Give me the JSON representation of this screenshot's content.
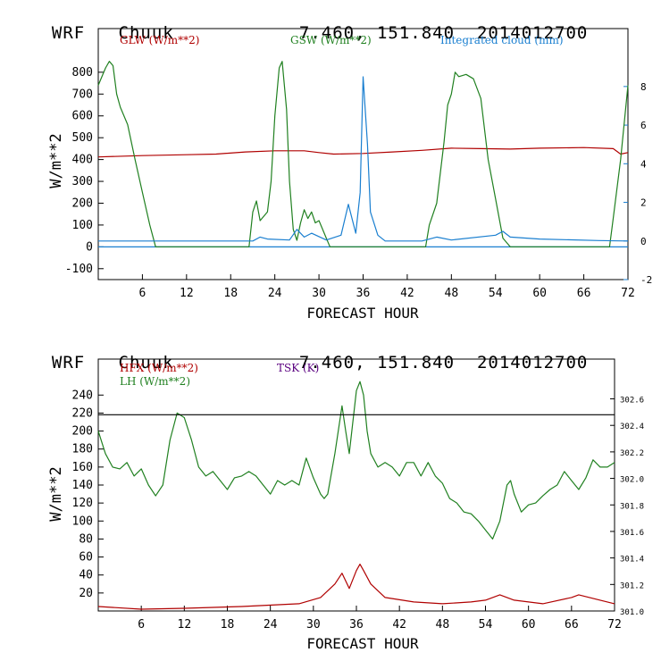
{
  "header": {
    "model": "WRF",
    "location": "Chuuk",
    "coords": "7.460, 151.840",
    "date": "2014012700"
  },
  "colors": {
    "glw": "#b00000",
    "gsw": "#208020",
    "cloud": "#1a7fd0",
    "hfx": "#b00000",
    "lh": "#208020",
    "tsk": "#5a0080"
  },
  "chart_data": [
    {
      "type": "line",
      "title": "WRF Chuuk 7.460, 151.840 2014012700",
      "xlabel": "FORECAST HOUR",
      "ylabel": "W/m**2",
      "xlim": [
        0,
        72
      ],
      "ylim": [
        -150,
        1000
      ],
      "y2lim": [
        -2,
        11
      ],
      "x_ticks": [
        6,
        12,
        18,
        24,
        30,
        36,
        42,
        48,
        54,
        60,
        66,
        72
      ],
      "y_ticks": [
        -100,
        0,
        100,
        200,
        300,
        400,
        500,
        600,
        700,
        800
      ],
      "y2_ticks": [
        -2,
        0,
        2,
        4,
        6,
        8
      ],
      "legend": [
        "GLW (W/m**2)",
        "GSW (W/m**2)",
        "Integrated cloud (mm)"
      ],
      "series": [
        {
          "name": "GLW (W/m**2)",
          "axis": "left",
          "color": "#b00000",
          "points": [
            [
              0,
              412
            ],
            [
              6,
              418
            ],
            [
              12,
              422
            ],
            [
              16,
              425
            ],
            [
              20,
              435
            ],
            [
              24,
              440
            ],
            [
              28,
              440
            ],
            [
              30,
              432
            ],
            [
              32,
              425
            ],
            [
              36,
              428
            ],
            [
              40,
              435
            ],
            [
              44,
              442
            ],
            [
              48,
              452
            ],
            [
              52,
              450
            ],
            [
              56,
              448
            ],
            [
              60,
              452
            ],
            [
              66,
              455
            ],
            [
              70,
              450
            ],
            [
              71,
              425
            ],
            [
              72,
              432
            ]
          ]
        },
        {
          "name": "GSW (W/m**2)",
          "axis": "left",
          "color": "#208020",
          "points": [
            [
              0,
              740
            ],
            [
              1,
              820
            ],
            [
              1.5,
              850
            ],
            [
              2,
              830
            ],
            [
              2.5,
              700
            ],
            [
              3,
              640
            ],
            [
              4,
              560
            ],
            [
              5,
              400
            ],
            [
              6,
              250
            ],
            [
              7,
              100
            ],
            [
              7.8,
              0
            ],
            [
              20.5,
              0
            ],
            [
              21,
              160
            ],
            [
              21.5,
              210
            ],
            [
              22,
              120
            ],
            [
              23,
              160
            ],
            [
              23.5,
              300
            ],
            [
              24,
              600
            ],
            [
              24.6,
              820
            ],
            [
              25,
              850
            ],
            [
              25.6,
              630
            ],
            [
              26,
              300
            ],
            [
              26.5,
              80
            ],
            [
              27,
              30
            ],
            [
              27.5,
              110
            ],
            [
              28,
              170
            ],
            [
              28.5,
              130
            ],
            [
              29,
              160
            ],
            [
              29.5,
              110
            ],
            [
              30,
              120
            ],
            [
              31,
              40
            ],
            [
              31.5,
              0
            ],
            [
              44.5,
              0
            ],
            [
              45,
              100
            ],
            [
              46,
              200
            ],
            [
              47,
              480
            ],
            [
              47.5,
              650
            ],
            [
              48,
              700
            ],
            [
              48.5,
              800
            ],
            [
              49,
              780
            ],
            [
              50,
              790
            ],
            [
              51,
              770
            ],
            [
              52,
              680
            ],
            [
              53,
              400
            ],
            [
              54,
              220
            ],
            [
              55,
              40
            ],
            [
              56,
              0
            ],
            [
              69.5,
              0
            ],
            [
              70,
              130
            ],
            [
              71,
              400
            ],
            [
              72,
              740
            ]
          ]
        },
        {
          "name": "Integrated cloud (mm)",
          "axis": "right",
          "color": "#1a7fd0",
          "points": [
            [
              0,
              0
            ],
            [
              21,
              0
            ],
            [
              22,
              0.2
            ],
            [
              23,
              0.1
            ],
            [
              26,
              0.05
            ],
            [
              27,
              0.6
            ],
            [
              28,
              0.2
            ],
            [
              29,
              0.4
            ],
            [
              31,
              0.05
            ],
            [
              33,
              0.3
            ],
            [
              34,
              1.9
            ],
            [
              35,
              0.4
            ],
            [
              35.6,
              2.5
            ],
            [
              36,
              8.5
            ],
            [
              36.6,
              5
            ],
            [
              37,
              1.5
            ],
            [
              38,
              0.3
            ],
            [
              39,
              0
            ],
            [
              44,
              0
            ],
            [
              46,
              0.2
            ],
            [
              48,
              0.05
            ],
            [
              54,
              0.3
            ],
            [
              55,
              0.5
            ],
            [
              56,
              0.2
            ],
            [
              60,
              0.1
            ],
            [
              68,
              0.02
            ],
            [
              72,
              0
            ]
          ]
        }
      ]
    },
    {
      "type": "line",
      "title": "WRF Chuuk 7.460, 151.840 2014012700",
      "xlabel": "FORECAST HOUR",
      "ylabel": "W/m**2",
      "xlim": [
        0,
        72
      ],
      "ylim": [
        0,
        280
      ],
      "y2lim": [
        301.0,
        302.9
      ],
      "x_ticks": [
        6,
        12,
        18,
        24,
        30,
        36,
        42,
        48,
        54,
        60,
        66,
        72
      ],
      "y_ticks": [
        20,
        40,
        60,
        80,
        100,
        120,
        140,
        160,
        180,
        200,
        220,
        240
      ],
      "y2_ticks": [
        "301.0",
        "301.2",
        "301.4",
        "301.6",
        "301.8",
        "302.0",
        "302.2",
        "302.4",
        "302.6"
      ],
      "legend": [
        "HFX (W/m**2)",
        "LH (W/m**2)",
        "TSK (K)"
      ],
      "series": [
        {
          "name": "HFX (W/m**2)",
          "axis": "left",
          "color": "#b00000",
          "points": [
            [
              0,
              5
            ],
            [
              6,
              2
            ],
            [
              12,
              3
            ],
            [
              20,
              5
            ],
            [
              28,
              8
            ],
            [
              31,
              15
            ],
            [
              33,
              30
            ],
            [
              34,
              42
            ],
            [
              35,
              25
            ],
            [
              36,
              45
            ],
            [
              36.5,
              52
            ],
            [
              37,
              45
            ],
            [
              38,
              30
            ],
            [
              40,
              15
            ],
            [
              44,
              10
            ],
            [
              48,
              8
            ],
            [
              52,
              10
            ],
            [
              54,
              12
            ],
            [
              56,
              18
            ],
            [
              58,
              12
            ],
            [
              62,
              8
            ],
            [
              66,
              15
            ],
            [
              67,
              18
            ],
            [
              70,
              12
            ],
            [
              72,
              8
            ]
          ]
        },
        {
          "name": "LH (W/m**2)",
          "axis": "left",
          "color": "#208020",
          "points": [
            [
              0,
              200
            ],
            [
              1,
              175
            ],
            [
              2,
              160
            ],
            [
              3,
              158
            ],
            [
              4,
              165
            ],
            [
              5,
              150
            ],
            [
              6,
              158
            ],
            [
              7,
              140
            ],
            [
              8,
              128
            ],
            [
              9,
              140
            ],
            [
              10,
              190
            ],
            [
              11,
              220
            ],
            [
              12,
              215
            ],
            [
              13,
              190
            ],
            [
              14,
              160
            ],
            [
              15,
              150
            ],
            [
              16,
              155
            ],
            [
              17,
              145
            ],
            [
              18,
              135
            ],
            [
              19,
              148
            ],
            [
              20,
              150
            ],
            [
              21,
              155
            ],
            [
              22,
              150
            ],
            [
              23,
              140
            ],
            [
              24,
              130
            ],
            [
              25,
              145
            ],
            [
              26,
              140
            ],
            [
              27,
              145
            ],
            [
              28,
              140
            ],
            [
              29,
              170
            ],
            [
              30,
              148
            ],
            [
              31,
              130
            ],
            [
              31.5,
              125
            ],
            [
              32,
              130
            ],
            [
              33,
              175
            ],
            [
              34,
              228
            ],
            [
              34.5,
              200
            ],
            [
              35,
              175
            ],
            [
              36,
              245
            ],
            [
              36.5,
              255
            ],
            [
              37,
              240
            ],
            [
              37.5,
              200
            ],
            [
              38,
              175
            ],
            [
              39,
              160
            ],
            [
              40,
              165
            ],
            [
              41,
              160
            ],
            [
              42,
              150
            ],
            [
              43,
              165
            ],
            [
              44,
              165
            ],
            [
              45,
              150
            ],
            [
              46,
              165
            ],
            [
              47,
              150
            ],
            [
              48,
              142
            ],
            [
              49,
              125
            ],
            [
              50,
              120
            ],
            [
              51,
              110
            ],
            [
              52,
              108
            ],
            [
              53,
              100
            ],
            [
              54,
              90
            ],
            [
              55,
              80
            ],
            [
              56,
              100
            ],
            [
              57,
              140
            ],
            [
              57.5,
              145
            ],
            [
              58,
              130
            ],
            [
              59,
              110
            ],
            [
              60,
              118
            ],
            [
              61,
              120
            ],
            [
              62,
              128
            ],
            [
              63,
              135
            ],
            [
              64,
              140
            ],
            [
              65,
              155
            ],
            [
              66,
              145
            ],
            [
              67,
              135
            ],
            [
              68,
              148
            ],
            [
              69,
              168
            ],
            [
              70,
              160
            ],
            [
              71,
              160
            ],
            [
              72,
              165
            ]
          ]
        },
        {
          "name": "TSK (K)",
          "axis": "right",
          "color": "#000000",
          "points": [
            [
              0,
              302.48
            ],
            [
              72,
              302.48
            ]
          ]
        }
      ]
    }
  ]
}
